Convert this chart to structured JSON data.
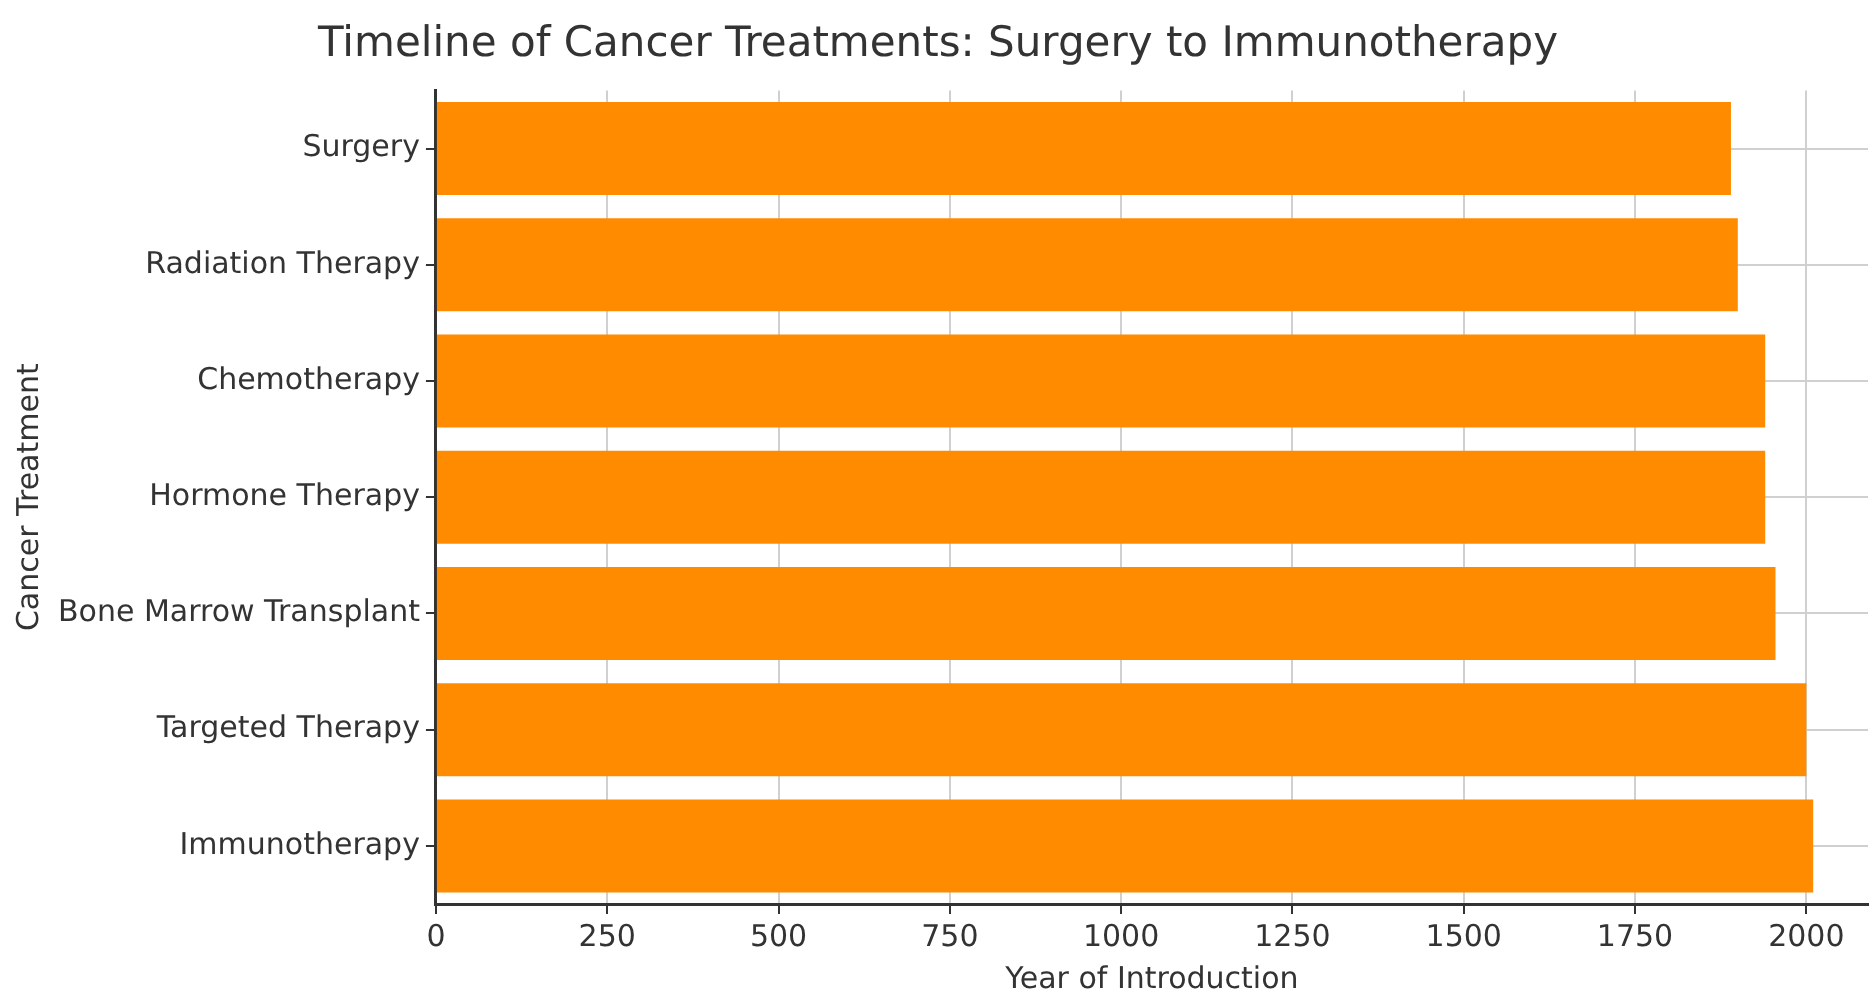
{
  "chart_data": {
    "type": "bar",
    "orientation": "horizontal",
    "title": "Timeline of Cancer Treatments: Surgery to Immunotherapy",
    "xlabel": "Year of Introduction",
    "ylabel": "Cancer Treatment",
    "categories": [
      "Surgery",
      "Radiation Therapy",
      "Chemotherapy",
      "Hormone Therapy",
      "Bone Marrow Transplant",
      "Targeted Therapy",
      "Immunotherapy"
    ],
    "values": [
      1890,
      1900,
      1940,
      1940,
      1955,
      2000,
      2010
    ],
    "color": "#ff8c00",
    "xlim": [
      0,
      2090
    ],
    "xticks": [
      0,
      250,
      500,
      750,
      1000,
      1250,
      1500,
      1750,
      2000
    ],
    "grid": true
  }
}
